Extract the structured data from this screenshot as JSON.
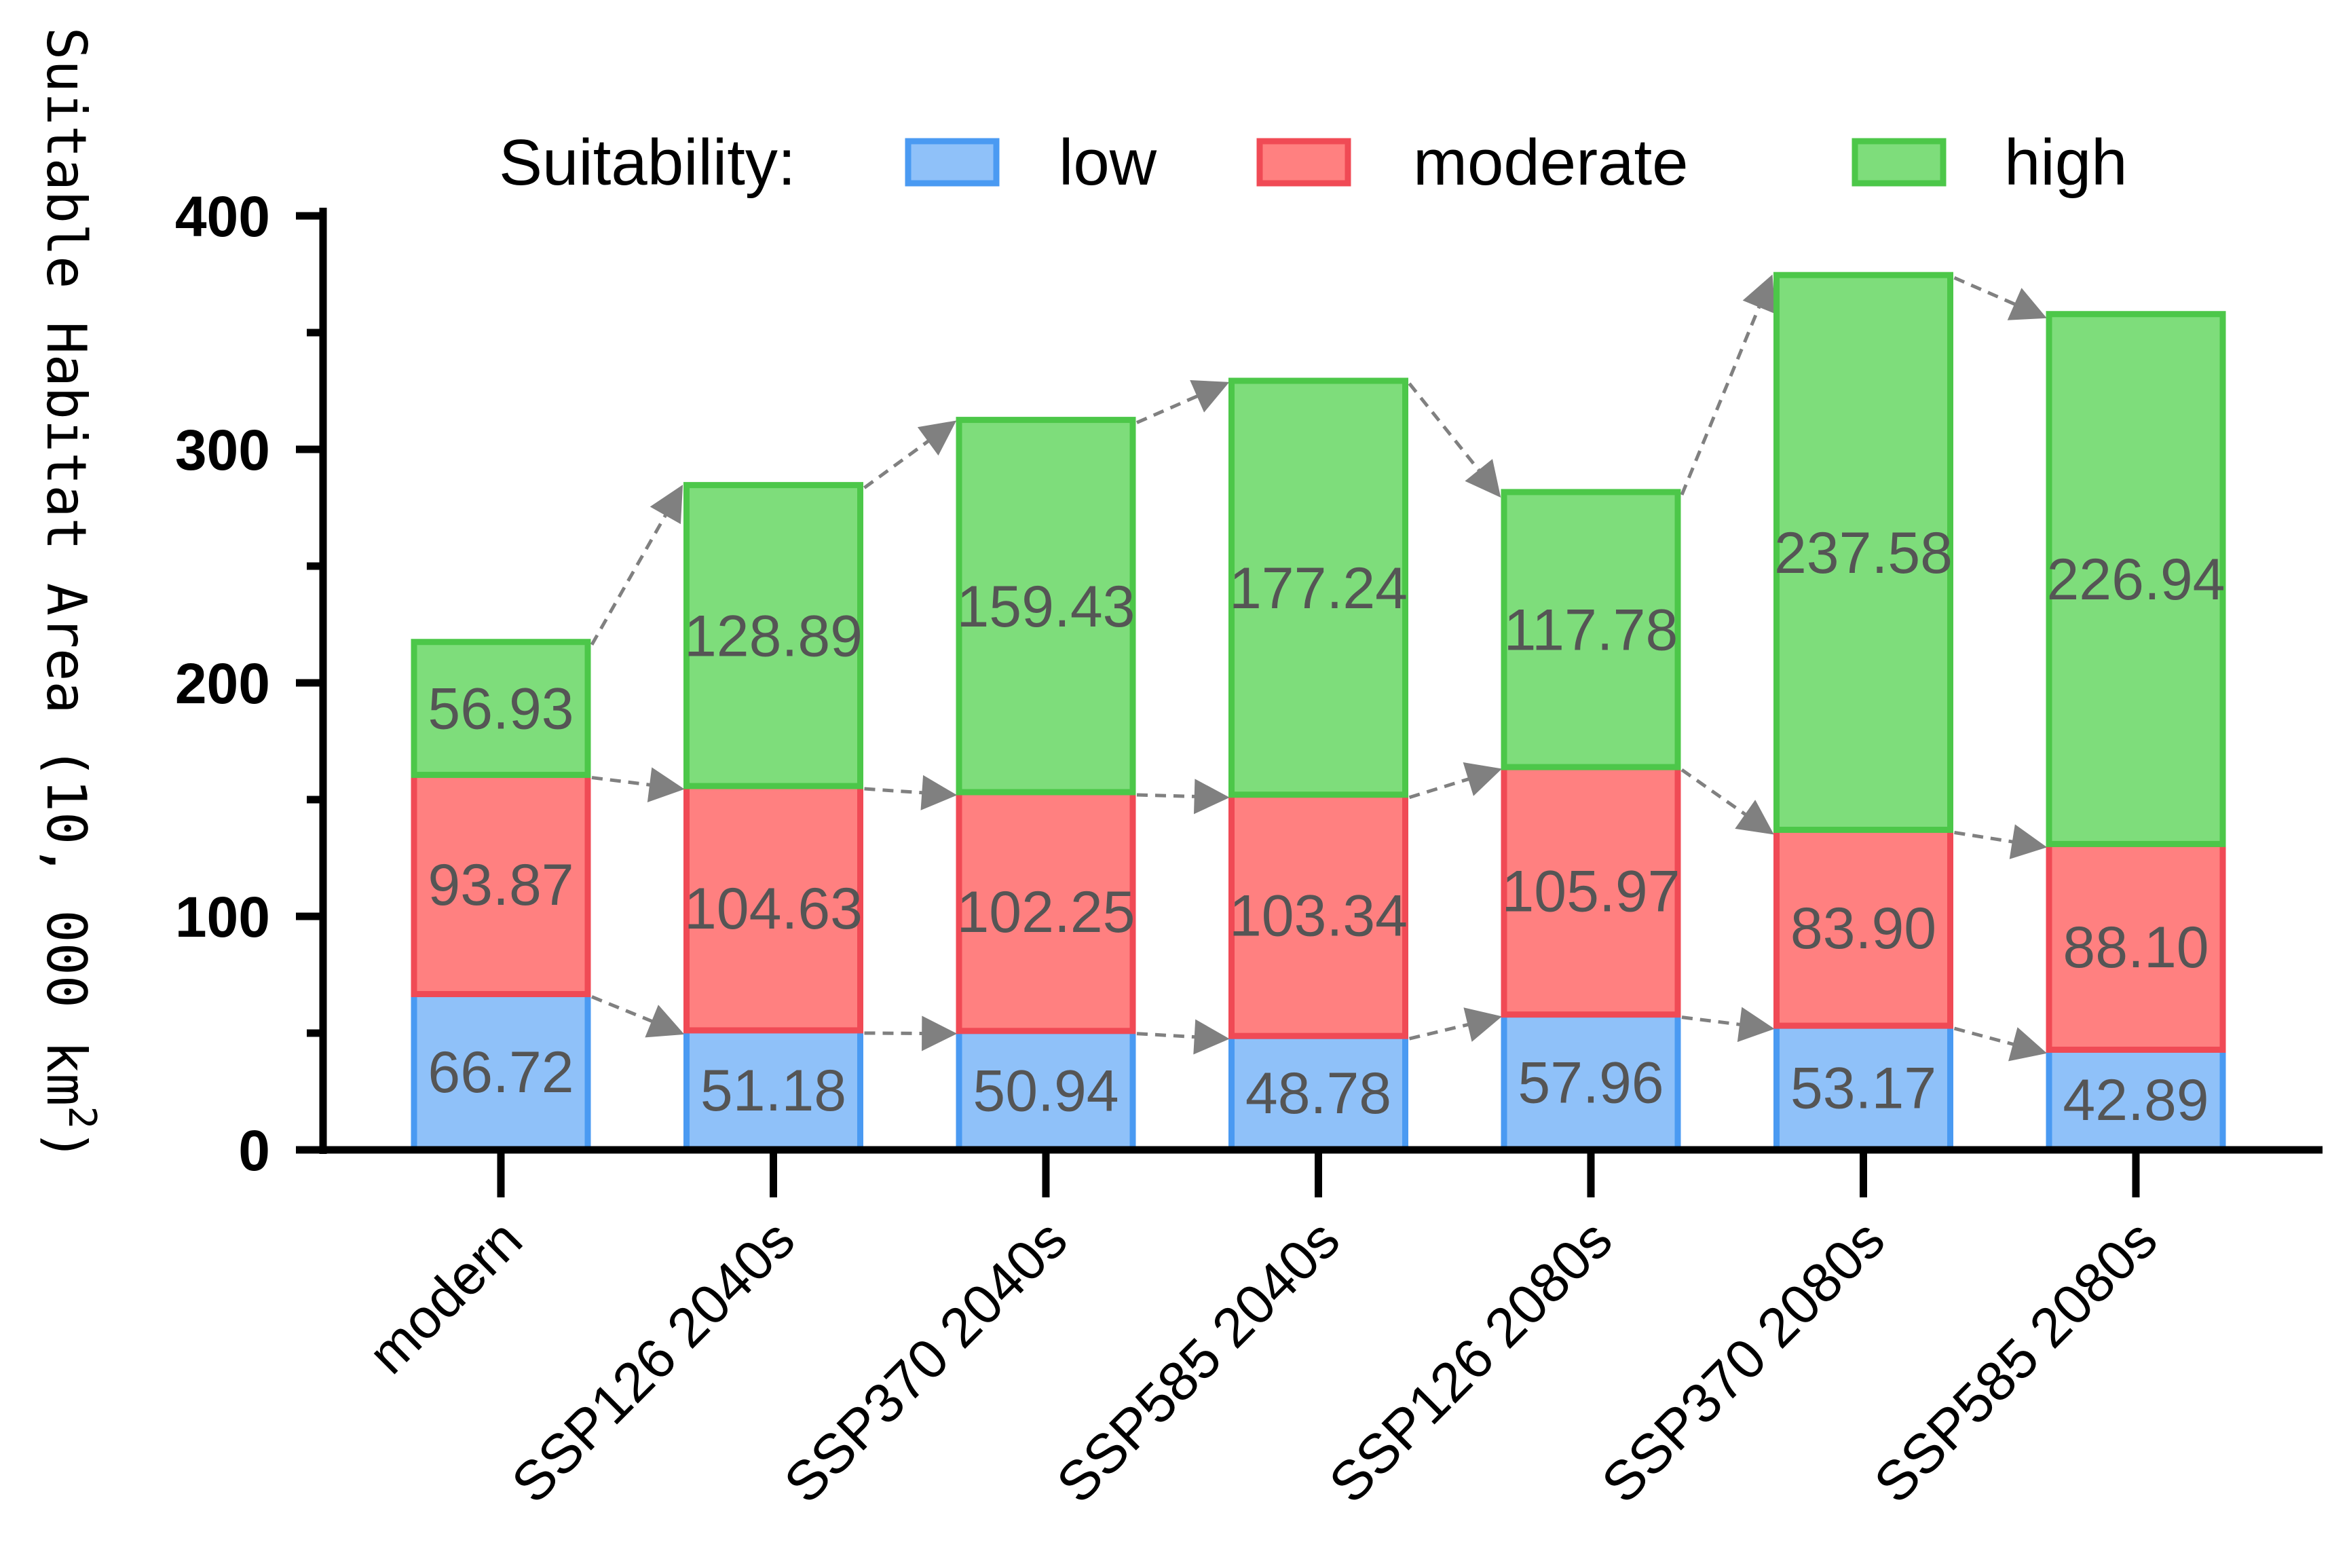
{
  "chart_data": {
    "type": "bar",
    "stacked": true,
    "categories": [
      "modern",
      "SSP126 2040s",
      "SSP370 2040s",
      "SSP585 2040s",
      "SSP126 2080s",
      "SSP370 2080s",
      "SSP585 2080s"
    ],
    "series": [
      {
        "name": "low",
        "color": "#8FC1F9",
        "edge": "#4A9AF2",
        "values": [
          66.72,
          51.18,
          50.94,
          48.78,
          57.96,
          53.17,
          42.89
        ]
      },
      {
        "name": "moderate",
        "color": "#FF8080",
        "edge": "#F04A55",
        "values": [
          93.87,
          104.63,
          102.25,
          103.34,
          105.97,
          83.9,
          88.1
        ]
      },
      {
        "name": "high",
        "color": "#7EDD7B",
        "edge": "#4CC749",
        "values": [
          56.93,
          128.89,
          159.43,
          177.24,
          117.78,
          237.58,
          226.94
        ]
      }
    ],
    "value_labels": [
      [
        "66.72",
        "51.18",
        "50.94",
        "48.78",
        "57.96",
        "53.17",
        "42.89"
      ],
      [
        "93.87",
        "104.63",
        "102.25",
        "103.34",
        "105.97",
        "83.90",
        "88.10"
      ],
      [
        "56.93",
        "128.89",
        "159.43",
        "177.24",
        "117.78",
        "237.58",
        "226.94"
      ]
    ],
    "ylim": [
      0,
      400
    ],
    "yticks": [
      "0",
      "100",
      "200",
      "300",
      "400"
    ],
    "ytick_values": [
      0,
      100,
      200,
      300,
      400
    ],
    "ylabel": "Suitable Habitat Area (10, 000 km",
    "ylabel_superscript": "2",
    "ylabel_close": ")",
    "xlabel": "",
    "legend": {
      "title": "Suitability:",
      "placement": "top"
    }
  }
}
